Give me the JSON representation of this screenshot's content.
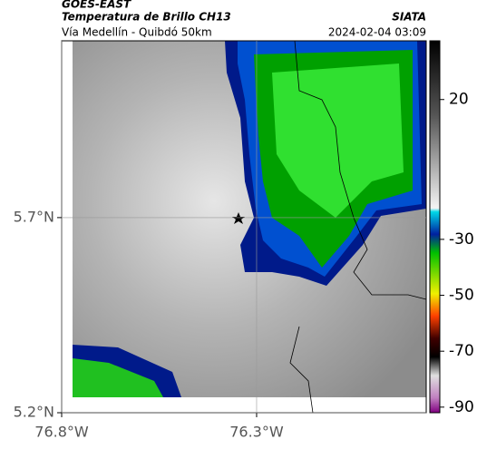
{
  "header": {
    "source": "GOES-EAST",
    "product": "Temperatura de Brillo CH13",
    "location": "Vía Medellín - Quibdó 50km",
    "agency": "SIATA",
    "datetime": "2024-02-04 03:09"
  },
  "map": {
    "xlim": [
      -76.8,
      -75.865
    ],
    "ylim": [
      5.2,
      6.153
    ],
    "xticks": [
      {
        "value": -76.8,
        "label": "76.8°W"
      },
      {
        "value": -76.3,
        "label": "76.3°W"
      }
    ],
    "yticks": [
      {
        "value": 5.7,
        "label": "5.7°N"
      },
      {
        "value": 5.2,
        "label": "5.2°N"
      }
    ]
  },
  "colorbar": {
    "lim": [
      -92,
      41
    ],
    "ticks": [
      20,
      -30,
      -50,
      -70,
      -90
    ]
  }
}
